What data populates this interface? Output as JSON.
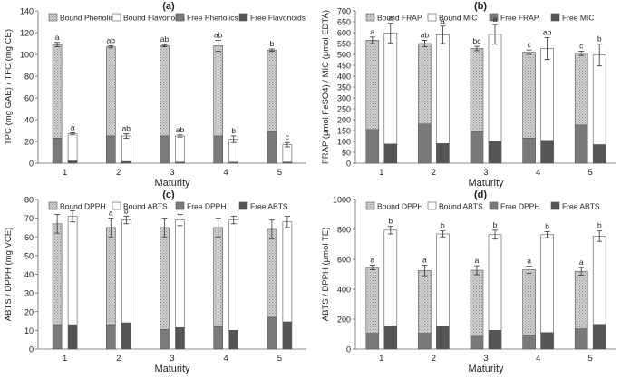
{
  "colors": {
    "bound_stack": "#c8c8c8",
    "bound_stack_pattern": "#9a9a9a",
    "bound_clear": "#ffffff",
    "free_a": "#7a7a7a",
    "free_b": "#555555",
    "outline": "#555555"
  },
  "chart_data": [
    {
      "id": "a",
      "panel_label": "(a)",
      "type": "bar",
      "stacked": true,
      "categories": [
        "1",
        "2",
        "3",
        "4",
        "5"
      ],
      "xlabel": "Maturity",
      "ylabel": "TPC (mg GAE) / TFC (mg CE)",
      "ylim": [
        0,
        140
      ],
      "yticks": [
        0,
        20,
        40,
        60,
        80,
        100,
        120,
        140
      ],
      "legend": [
        "Bound Phenolics",
        "Bound Flavonoids",
        "Free Phenolics",
        "Free Flavonoids"
      ],
      "legend_position": "top",
      "groups": [
        {
          "name": "Phenolics",
          "free": [
            23,
            25,
            25,
            25,
            29
          ],
          "total": [
            109,
            107,
            108,
            108,
            104
          ],
          "err": [
            2,
            1,
            1,
            5,
            1
          ],
          "letters": [
            "a",
            "ab",
            "ab",
            "ab",
            "b"
          ]
        },
        {
          "name": "Flavonoids",
          "free": [
            2,
            1.5,
            1,
            1,
            1
          ],
          "total": [
            27,
            25,
            25,
            22,
            17
          ],
          "err": [
            1,
            2,
            1,
            3,
            2
          ],
          "letters": [
            "a",
            "ab",
            "ab",
            "b",
            "c"
          ]
        }
      ]
    },
    {
      "id": "b",
      "panel_label": "(b)",
      "type": "bar",
      "stacked": true,
      "categories": [
        "1",
        "2",
        "3",
        "4",
        "5"
      ],
      "xlabel": "Maturity",
      "ylabel": "FRAP (μmol FeSO4) / MIC (μmol EDTA)",
      "ylim": [
        0,
        700
      ],
      "yticks": [
        0,
        50,
        100,
        150,
        200,
        250,
        300,
        350,
        400,
        450,
        500,
        550,
        600,
        650,
        700
      ],
      "legend": [
        "Bound FRAP",
        "Bound MIC",
        "Free FRAP",
        "Free MIC"
      ],
      "legend_position": "top",
      "groups": [
        {
          "name": "FRAP",
          "free": [
            155,
            180,
            145,
            115,
            175
          ],
          "total": [
            565,
            550,
            527,
            510,
            505
          ],
          "err": [
            15,
            15,
            10,
            10,
            10
          ],
          "letters": [
            "a",
            "ab",
            "bc",
            "c",
            "c"
          ]
        },
        {
          "name": "MIC",
          "free": [
            88,
            90,
            100,
            105,
            85
          ],
          "total": [
            598,
            590,
            592,
            527,
            497
          ],
          "err": [
            45,
            40,
            45,
            50,
            50
          ],
          "letters": [
            "a",
            "a",
            "a",
            "ab",
            "b"
          ]
        }
      ]
    },
    {
      "id": "c",
      "panel_label": "(c)",
      "type": "bar",
      "stacked": true,
      "categories": [
        "1",
        "2",
        "3",
        "4",
        "5"
      ],
      "xlabel": "Maturity",
      "ylabel": "ABTS / DPPH (mg VCE)",
      "ylim": [
        0,
        80
      ],
      "yticks": [
        0,
        10,
        20,
        30,
        40,
        50,
        60,
        70,
        80
      ],
      "legend": [
        "Bound DPPH",
        "Bound ABTS",
        "Free DPPH",
        "Free ABTS"
      ],
      "legend_position": "top",
      "groups": [
        {
          "name": "DPPH",
          "free": [
            13,
            13,
            10.5,
            12,
            17
          ],
          "total": [
            67,
            65,
            65,
            65,
            64
          ],
          "err": [
            5,
            5,
            5,
            5,
            5
          ],
          "letters": [
            "",
            "a",
            "",
            "",
            ""
          ]
        },
        {
          "name": "ABTS",
          "free": [
            13,
            14,
            11.5,
            10,
            14.5
          ],
          "total": [
            71,
            69,
            69,
            69,
            68
          ],
          "err": [
            3,
            2,
            3,
            2,
            3
          ],
          "letters": [
            "",
            "b",
            "",
            "",
            ""
          ]
        }
      ]
    },
    {
      "id": "d",
      "panel_label": "(d)",
      "type": "bar",
      "stacked": true,
      "categories": [
        "1",
        "2",
        "3",
        "4",
        "5"
      ],
      "xlabel": "Maturity",
      "ylabel": "ABTS / DPPH (μmol TE)",
      "ylim": [
        0,
        1000
      ],
      "yticks": [
        0,
        200,
        400,
        600,
        800,
        1000
      ],
      "legend": [
        "Bound DPPH",
        "Bound ABTS",
        "Free DPPH",
        "Free ABTS"
      ],
      "legend_position": "top",
      "groups": [
        {
          "name": "DPPH",
          "free": [
            105,
            105,
            85,
            95,
            135
          ],
          "total": [
            545,
            525,
            527,
            530,
            520
          ],
          "err": [
            15,
            35,
            30,
            25,
            25
          ],
          "letters": [
            "a",
            "a",
            "a",
            "a",
            "a"
          ]
        },
        {
          "name": "ABTS",
          "free": [
            155,
            150,
            125,
            110,
            165
          ],
          "total": [
            795,
            770,
            765,
            765,
            755
          ],
          "err": [
            25,
            20,
            30,
            20,
            35
          ],
          "letters": [
            "b",
            "b",
            "b",
            "b",
            "b"
          ]
        }
      ]
    }
  ]
}
